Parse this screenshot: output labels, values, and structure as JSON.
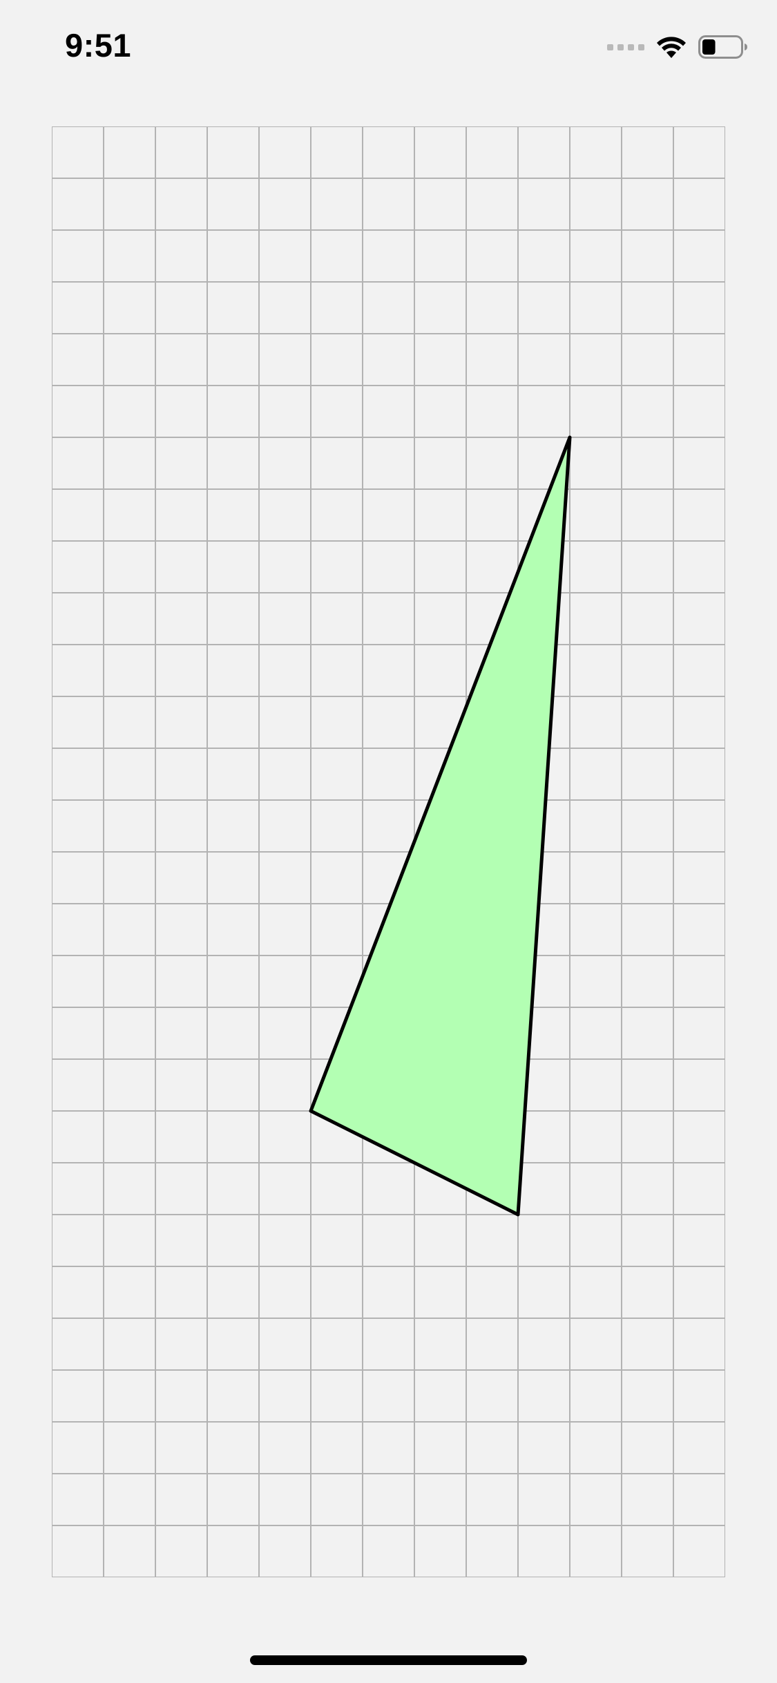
{
  "status_bar": {
    "time": "9:51",
    "icons": [
      "cellular-signal-icon",
      "wifi-icon",
      "battery-icon"
    ],
    "battery_level": 0.35
  },
  "canvas": {
    "grid": {
      "columns": 13,
      "rows": 28,
      "line_color": "#b3b3b3",
      "background": "#f2f2f2"
    },
    "triangle": {
      "vertices": [
        [
          10,
          6
        ],
        [
          5,
          19
        ],
        [
          9,
          21
        ]
      ],
      "fill": "#b3ffb3",
      "stroke": "#000000"
    }
  },
  "home_indicator": {
    "color": "#000000"
  }
}
